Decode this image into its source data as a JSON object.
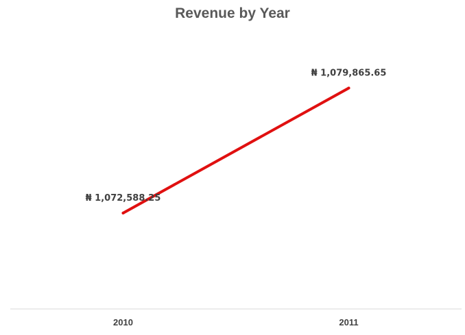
{
  "chart_data": {
    "type": "line",
    "title": "Revenue by Year",
    "xlabel": "",
    "ylabel": "",
    "categories": [
      "2010",
      "2011"
    ],
    "series": [
      {
        "values": [
          1072588.25,
          1079865.65
        ],
        "color": "#e01010",
        "data_labels": [
          "₦ 1,072,588.25",
          "₦ 1,079,865.65"
        ]
      }
    ],
    "ylim": [
      1067000,
      1083000
    ],
    "grid": false,
    "legend": "none",
    "axis_line_color": "#d9d9d9"
  }
}
